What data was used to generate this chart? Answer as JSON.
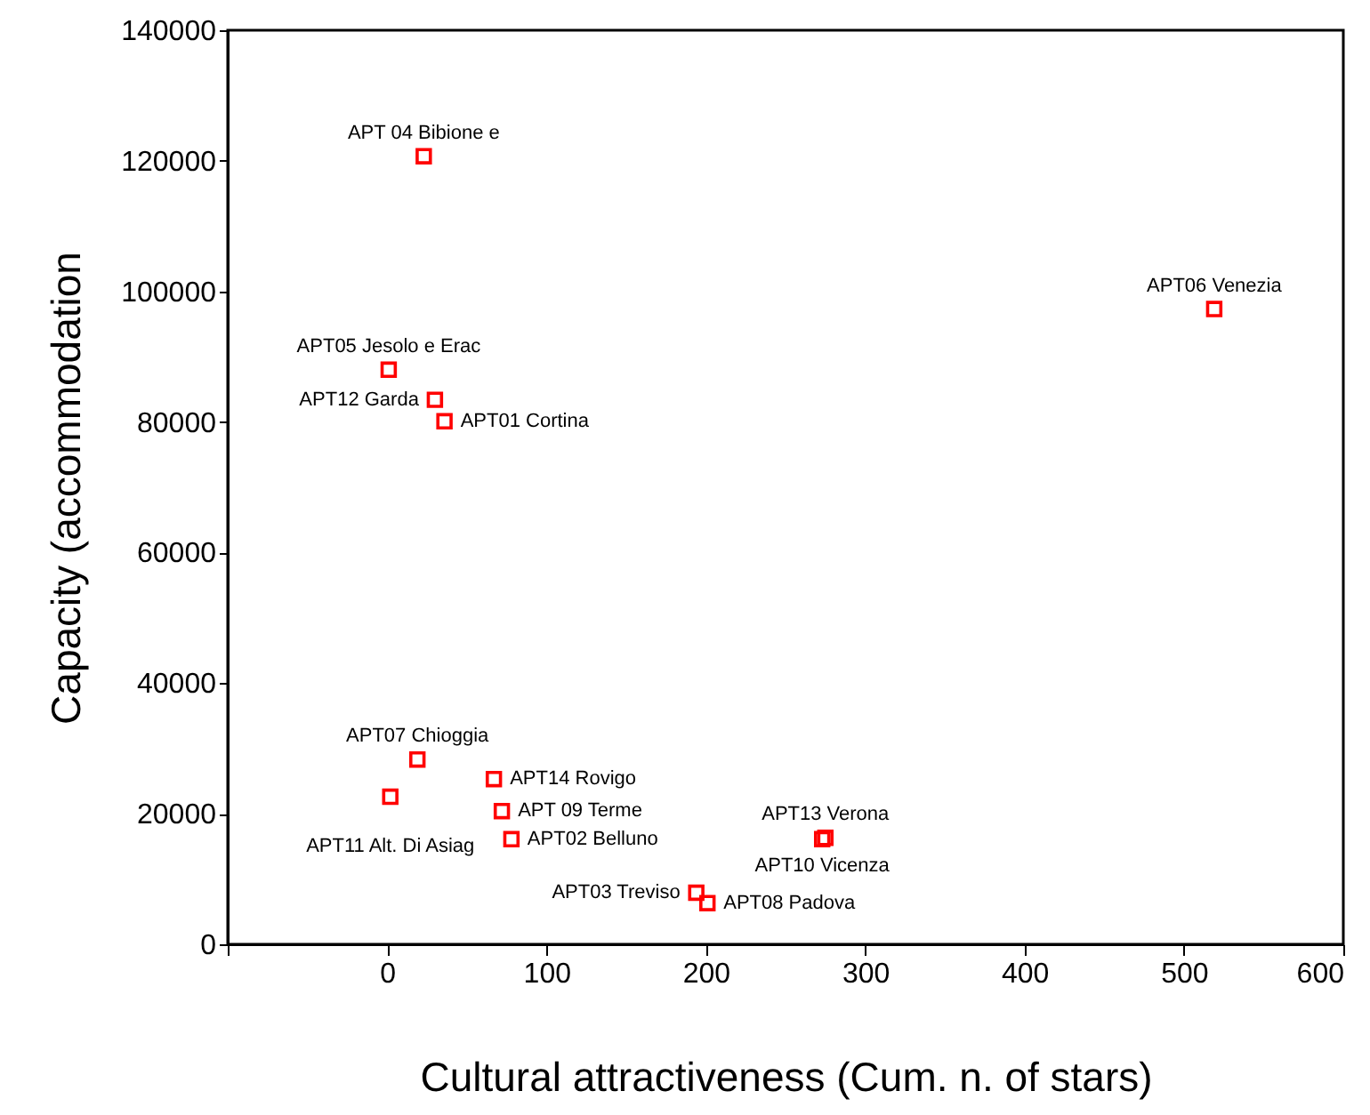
{
  "chart_data": {
    "type": "scatter",
    "xlabel": "Cultural attractiveness (Cum. n. of stars)",
    "ylabel": "Capacity (accommodation",
    "x": [
      23,
      1,
      30,
      36,
      519,
      19,
      67,
      2,
      72,
      78,
      275,
      273,
      194,
      201
    ],
    "series": [
      {
        "color": "#ff0000",
        "values": [
          120700,
          88000,
          83400,
          80100,
          97300,
          28300,
          25300,
          22600,
          20400,
          16100,
          16300,
          16100,
          7900,
          6300
        ]
      }
    ],
    "annotations": [
      {
        "text": "APT 04 Bibione e",
        "x": 23,
        "y": 120700
      },
      {
        "text": "APT05 Jesolo e Erac",
        "x": 1,
        "y": 88000
      },
      {
        "text": "APT12 Garda",
        "x": 30,
        "y": 83400
      },
      {
        "text": "APT01 Cortina",
        "x": 36,
        "y": 80100
      },
      {
        "text": "APT06 Venezia",
        "x": 519,
        "y": 97300
      },
      {
        "text": "APT07 Chioggia",
        "x": 19,
        "y": 28300
      },
      {
        "text": "APT14 Rovigo",
        "x": 67,
        "y": 25300
      },
      {
        "text": "APT11 Alt. Di Asiag",
        "x": 2,
        "y": 22600
      },
      {
        "text": "APT 09 Terme",
        "x": 72,
        "y": 20400
      },
      {
        "text": "APT02 Belluno",
        "x": 78,
        "y": 16100
      },
      {
        "text": "APT13 Verona",
        "x": 275,
        "y": 16300
      },
      {
        "text": "APT10 Vicenza",
        "x": 273,
        "y": 16100
      },
      {
        "text": "APT03 Treviso",
        "x": 194,
        "y": 7900
      },
      {
        "text": "APT08 Padova",
        "x": 201,
        "y": 6300
      }
    ],
    "xlim": [
      -100,
      600
    ],
    "xticks": [
      {
        "value": -100,
        "label": null
      },
      0,
      100,
      200,
      300,
      400,
      500,
      600
    ],
    "ylim": [
      0,
      140000
    ],
    "yticks": [
      0,
      20000,
      40000,
      60000,
      80000,
      100000,
      120000,
      140000
    ],
    "marker": "square",
    "grid": false
  }
}
